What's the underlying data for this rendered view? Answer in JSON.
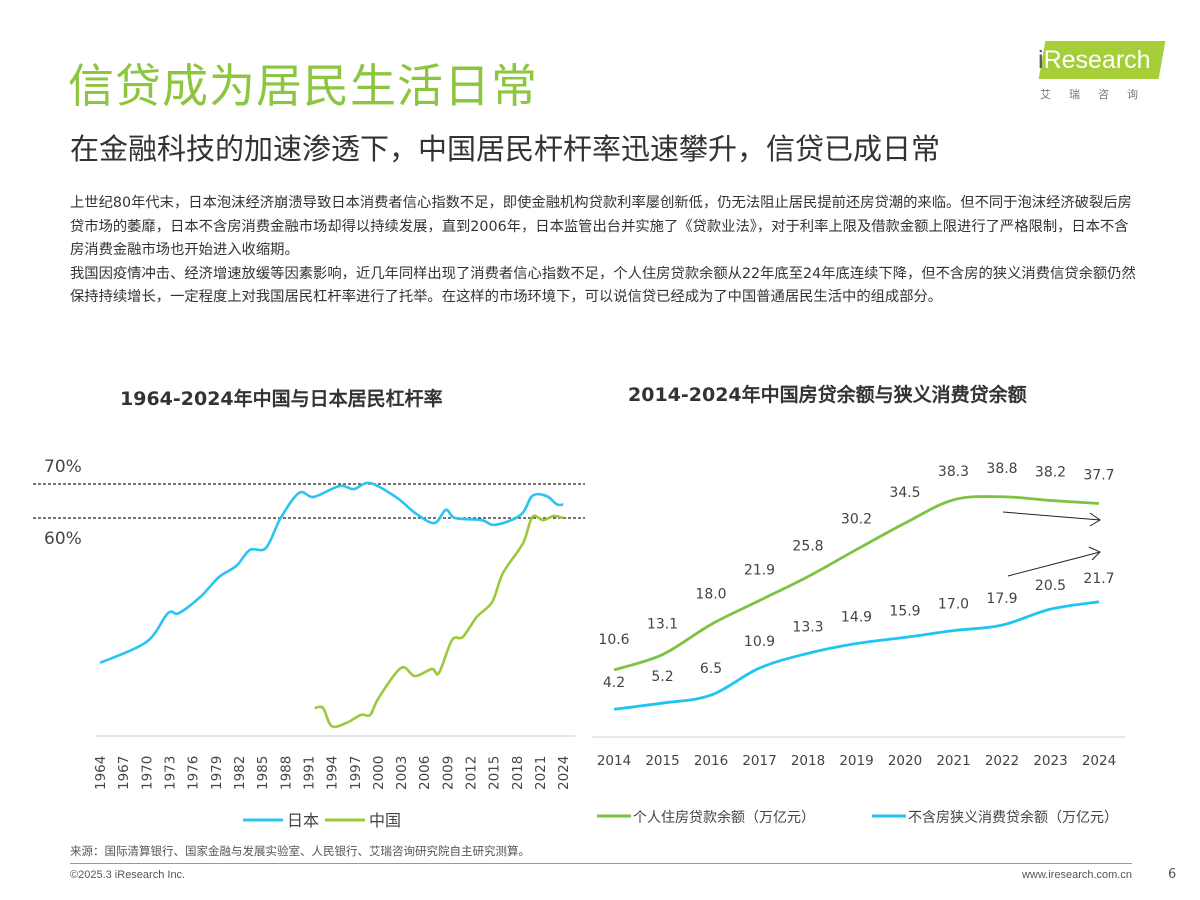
{
  "header": {
    "title": "信贷成为居民生活日常",
    "subtitle": "在金融科技的加速渗透下，中国居民杆杆率迅速攀升，信贷已成日常",
    "logo": {
      "text": "iResearch",
      "cn": "艾瑞咨询",
      "color": "#a6ce39"
    }
  },
  "body": {
    "paragraphs": [
      "上世纪80年代末，日本泡沫经济崩溃导致日本消费者信心指数不足，即使金融机构贷款利率屡创新低，仍无法阻止居民提前还房贷潮的来临。但不同于泡沫经济破裂后房贷市场的萎靡，日本不含房消费金融市场却得以持续发展，直到2006年，日本监管出台并实施了《贷款业法》，对于利率上限及借款金额上限进行了严格限制，日本不含房消费金融市场也开始进入收缩期。",
      "我国因疫情冲击、经济增速放缓等因素影响，近几年同样出现了消费者信心指数不足，个人住房贷款余额从22年底至24年底连续下降，但不含房的狭义消费信贷余额仍然保持持续增长，一定程度上对我国居民杠杆率进行了托举。在这样的市场环境下，可以说信贷已经成为了中国普通居民生活中的组成部分。"
    ]
  },
  "chart_data": [
    {
      "type": "line",
      "title": "1964-2024年中国与日本居民杠杆率",
      "reference_lines": [
        {
          "label": "70%",
          "value": 70
        },
        {
          "label": "60%",
          "value": 60
        }
      ],
      "tick_labels": [
        "1964",
        "1967",
        "1970",
        "1973",
        "1976",
        "1979",
        "1982",
        "1985",
        "1988",
        "1991",
        "1994",
        "1997",
        "2000",
        "2003",
        "2006",
        "2009",
        "2012",
        "2015",
        "2018",
        "2021",
        "2024"
      ],
      "grid": false,
      "legend_placement": "bottom",
      "series": [
        {
          "name": "日本",
          "color": "#29c4ef",
          "points": [
            [
              1964,
              17.4
            ],
            [
              1970,
              23.5
            ],
            [
              1972.8,
              32
            ],
            [
              1974.2,
              32
            ],
            [
              1977,
              36.8
            ],
            [
              1979.4,
              42.6
            ],
            [
              1981.7,
              46
            ],
            [
              1983.4,
              50.6
            ],
            [
              1985.5,
              51.2
            ],
            [
              1987.4,
              60
            ],
            [
              1989.8,
              67.4
            ],
            [
              1991.7,
              66.2
            ],
            [
              1995,
              69.4
            ],
            [
              1996.9,
              68.5
            ],
            [
              1999,
              70.3
            ],
            [
              2002.5,
              65.9
            ],
            [
              2004.8,
              61.5
            ],
            [
              2007.3,
              58.5
            ],
            [
              2008.8,
              62.4
            ],
            [
              2010,
              60
            ],
            [
              2013.4,
              59.4
            ],
            [
              2015.2,
              58
            ],
            [
              2018.5,
              60.9
            ],
            [
              2020,
              66.5
            ],
            [
              2021.8,
              66.5
            ],
            [
              2023.2,
              64
            ],
            [
              2024,
              64
            ]
          ]
        },
        {
          "name": "中国",
          "color": "#9cc93b",
          "points": [
            [
              1991.8,
              4.1
            ],
            [
              1992.9,
              4.1
            ],
            [
              1994,
              -1.2
            ],
            [
              1995.9,
              -0.3
            ],
            [
              1997.8,
              2.1
            ],
            [
              1999,
              2.1
            ],
            [
              2000.1,
              7.1
            ],
            [
              2003,
              15.9
            ],
            [
              2004.8,
              13.5
            ],
            [
              2007,
              15.6
            ],
            [
              2007.9,
              14.4
            ],
            [
              2009.6,
              24.1
            ],
            [
              2011,
              25
            ],
            [
              2012.8,
              30.9
            ],
            [
              2014.8,
              35.3
            ],
            [
              2016.2,
              43.8
            ],
            [
              2018.8,
              52.6
            ],
            [
              2020,
              60.3
            ],
            [
              2021.4,
              59.4
            ],
            [
              2022.8,
              60.6
            ],
            [
              2024,
              60
            ]
          ]
        }
      ]
    },
    {
      "type": "line",
      "title": "2014-2024年中国房贷余额与狭义消费贷余额",
      "categories": [
        "2014",
        "2015",
        "2016",
        "2017",
        "2018",
        "2019",
        "2020",
        "2021",
        "2022",
        "2023",
        "2024"
      ],
      "grid": false,
      "legend_placement": "bottom",
      "ylim": [
        0,
        40
      ],
      "series": [
        {
          "name": "个人住房贷款余额（万亿元）",
          "color": "#7dc242",
          "values": [
            10.6,
            13.1,
            18.0,
            21.9,
            25.8,
            30.2,
            34.5,
            38.3,
            38.8,
            38.2,
            37.7
          ]
        },
        {
          "name": "不含房狭义消费贷余额（万亿元）",
          "color": "#1fc5f0",
          "values": [
            4.2,
            5.2,
            6.5,
            10.9,
            13.3,
            14.9,
            15.9,
            17.0,
            17.9,
            20.5,
            21.7
          ]
        }
      ],
      "annotations": [
        "arrow-down-trend",
        "arrow-up-trend"
      ]
    }
  ],
  "footer": {
    "source": "来源：国际清算银行、国家金融与发展实验室、人民银行、艾瑞咨询研究院自主研究测算。",
    "copyright": "©2025.3 iResearch Inc.",
    "url": "www.iresearch.com.cn",
    "page": "6"
  }
}
